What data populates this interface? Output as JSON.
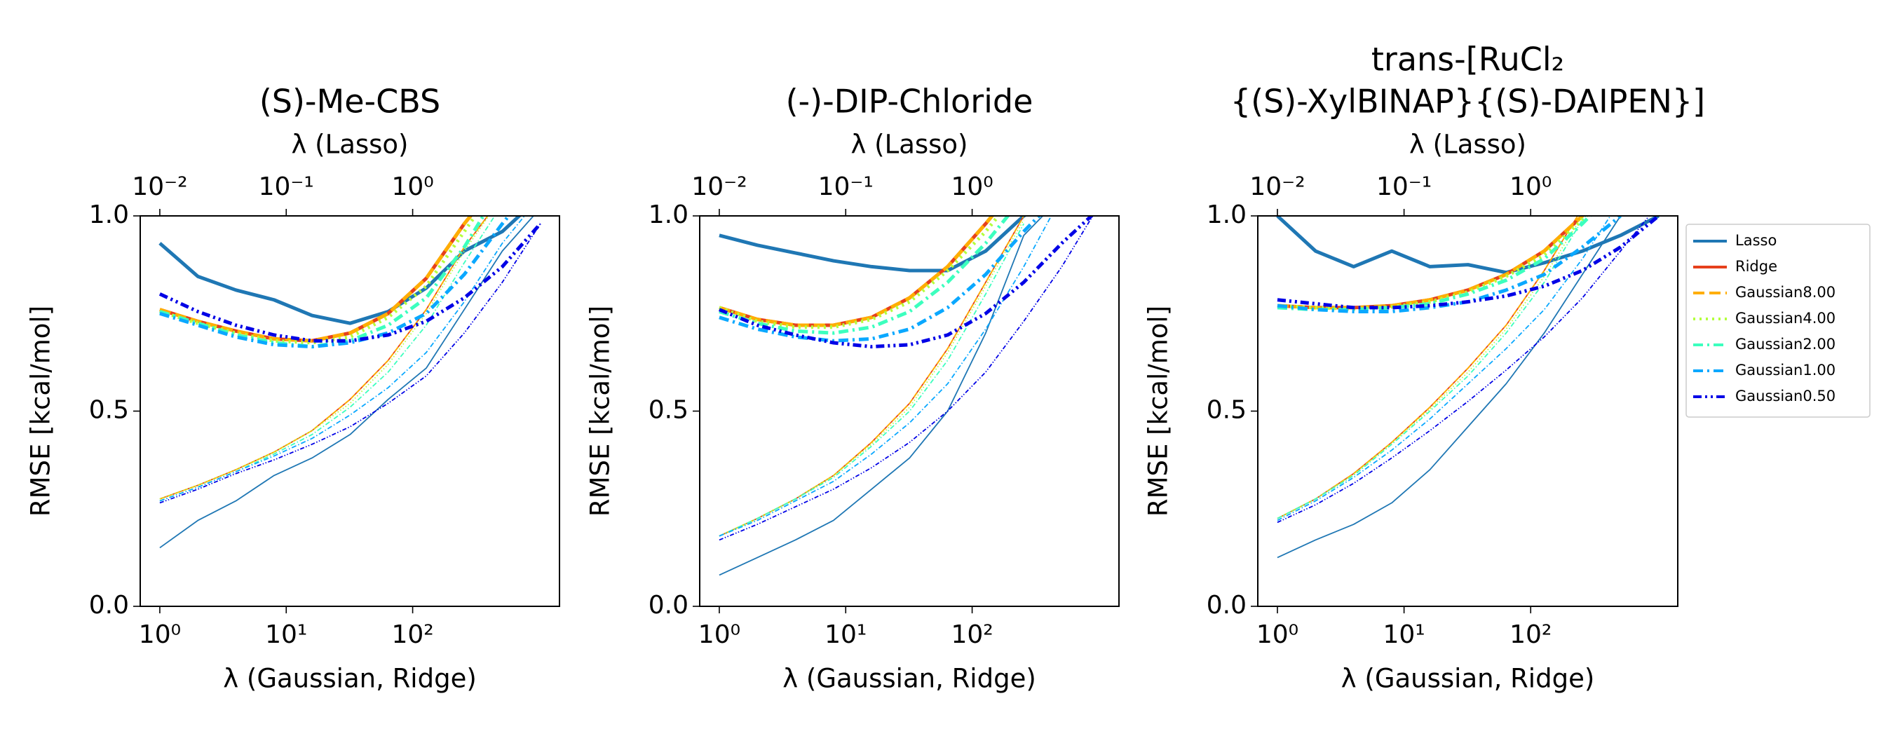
{
  "chart_data": [
    {
      "type": "line",
      "title": [
        "(S)-Me-CBS"
      ],
      "xlabel": "λ (Gaussian, Ridge)",
      "x2label": "λ (Lasso)",
      "ylabel": "RMSE [kcal/mol]",
      "xscale": "log",
      "xlim": [
        0.7,
        1450
      ],
      "xticks": [
        {
          "value": 1,
          "label": "10⁰"
        },
        {
          "value": 10,
          "label": "10¹"
        },
        {
          "value": 100,
          "label": "10²"
        }
      ],
      "x2lim": [
        0.007,
        14.5
      ],
      "x2ticks": [
        {
          "value": 0.01,
          "label": "10⁻²"
        },
        {
          "value": 0.1,
          "label": "10⁻¹"
        },
        {
          "value": 1,
          "label": "10⁰"
        }
      ],
      "ylim": [
        0,
        1
      ],
      "yticks": [
        {
          "value": 0,
          "label": "0.0"
        },
        {
          "value": 0.5,
          "label": "0.5"
        },
        {
          "value": 1,
          "label": "1.0"
        }
      ],
      "series": [
        {
          "color": "#1f77b4",
          "dash": "solid",
          "axis": "x2",
          "x": [
            0.01,
            0.02,
            0.04,
            0.08,
            0.16,
            0.32,
            0.64,
            1.28,
            2.56,
            5.12,
            10.24
          ],
          "values": [
            0.93,
            0.845,
            0.81,
            0.785,
            0.745,
            0.725,
            0.755,
            0.815,
            0.91,
            0.96,
            1.05
          ],
          "train_values": [
            0.15,
            0.22,
            0.27,
            0.335,
            0.38,
            0.44,
            0.53,
            0.61,
            0.76,
            0.91,
            1.02
          ]
        },
        {
          "color": "#e6401c",
          "dash": "solid",
          "x": [
            1,
            2,
            4,
            8,
            16,
            32,
            64,
            128,
            256,
            512
          ],
          "values": [
            0.76,
            0.73,
            0.705,
            0.685,
            0.68,
            0.7,
            0.75,
            0.84,
            0.98,
            1.1
          ],
          "train_values": [
            0.275,
            0.31,
            0.35,
            0.395,
            0.45,
            0.53,
            0.63,
            0.76,
            0.92,
            1.05
          ]
        },
        {
          "color": "#ffae00",
          "dash": "dashed",
          "x": [
            1,
            2,
            4,
            8,
            16,
            32,
            64,
            128,
            256,
            512
          ],
          "values": [
            0.76,
            0.73,
            0.705,
            0.685,
            0.68,
            0.7,
            0.75,
            0.84,
            0.98,
            1.1
          ],
          "train_values": [
            0.275,
            0.31,
            0.35,
            0.395,
            0.45,
            0.53,
            0.63,
            0.76,
            0.92,
            1.05
          ]
        },
        {
          "color": "#b4ff3c",
          "dash": "dotted",
          "x": [
            1,
            2,
            4,
            8,
            16,
            32,
            64,
            128,
            256,
            512
          ],
          "values": [
            0.755,
            0.725,
            0.7,
            0.68,
            0.675,
            0.69,
            0.74,
            0.82,
            0.96,
            1.1
          ],
          "train_values": [
            0.275,
            0.31,
            0.35,
            0.395,
            0.45,
            0.52,
            0.62,
            0.75,
            0.91,
            1.05
          ]
        },
        {
          "color": "#3cffbe",
          "dash": "dashdot",
          "x": [
            1,
            2,
            4,
            8,
            16,
            32,
            64,
            128,
            256,
            512
          ],
          "values": [
            0.755,
            0.725,
            0.695,
            0.675,
            0.665,
            0.68,
            0.72,
            0.79,
            0.92,
            1.08
          ],
          "train_values": [
            0.27,
            0.305,
            0.345,
            0.39,
            0.44,
            0.51,
            0.6,
            0.72,
            0.88,
            1.03
          ]
        },
        {
          "color": "#0aa8ff",
          "dash": "dashdot",
          "x": [
            1,
            2,
            4,
            8,
            16,
            32,
            64,
            128,
            256,
            512,
            1024
          ],
          "values": [
            0.75,
            0.72,
            0.69,
            0.67,
            0.665,
            0.675,
            0.7,
            0.75,
            0.85,
            0.98,
            1.1
          ],
          "train_values": [
            0.27,
            0.305,
            0.345,
            0.385,
            0.43,
            0.49,
            0.56,
            0.65,
            0.78,
            0.93,
            1.05
          ]
        },
        {
          "color": "#0000e6",
          "dash": "dashdotdot",
          "x": [
            1,
            2,
            4,
            8,
            16,
            32,
            64,
            128,
            256,
            512,
            1024
          ],
          "values": [
            0.8,
            0.755,
            0.72,
            0.695,
            0.68,
            0.68,
            0.695,
            0.73,
            0.79,
            0.87,
            0.98
          ],
          "train_values": [
            0.265,
            0.3,
            0.34,
            0.375,
            0.415,
            0.46,
            0.52,
            0.59,
            0.7,
            0.83,
            0.98
          ]
        }
      ]
    },
    {
      "type": "line",
      "title": [
        "(-)-DIP-Chloride"
      ],
      "xlabel": "λ (Gaussian, Ridge)",
      "x2label": "λ (Lasso)",
      "ylabel": "RMSE [kcal/mol]",
      "xscale": "log",
      "xlim": [
        0.7,
        1450
      ],
      "xticks": [
        {
          "value": 1,
          "label": "10⁰"
        },
        {
          "value": 10,
          "label": "10¹"
        },
        {
          "value": 100,
          "label": "10²"
        }
      ],
      "x2lim": [
        0.007,
        14.5
      ],
      "x2ticks": [
        {
          "value": 0.01,
          "label": "10⁻²"
        },
        {
          "value": 0.1,
          "label": "10⁻¹"
        },
        {
          "value": 1,
          "label": "10⁰"
        }
      ],
      "ylim": [
        0,
        1
      ],
      "yticks": [
        {
          "value": 0,
          "label": "0.0"
        },
        {
          "value": 0.5,
          "label": "0.5"
        },
        {
          "value": 1,
          "label": "1.0"
        }
      ],
      "series": [
        {
          "color": "#1f77b4",
          "dash": "solid",
          "axis": "x2",
          "x": [
            0.01,
            0.02,
            0.04,
            0.08,
            0.16,
            0.32,
            0.64,
            1.28,
            2.56,
            5.12
          ],
          "values": [
            0.95,
            0.925,
            0.905,
            0.885,
            0.87,
            0.86,
            0.86,
            0.91,
            1.0,
            1.05
          ],
          "train_values": [
            0.08,
            0.125,
            0.17,
            0.22,
            0.3,
            0.38,
            0.5,
            0.7,
            0.95,
            1.05
          ]
        },
        {
          "color": "#e6401c",
          "dash": "solid",
          "x": [
            1,
            2,
            4,
            8,
            16,
            32,
            64,
            128,
            256
          ],
          "values": [
            0.765,
            0.735,
            0.72,
            0.72,
            0.74,
            0.79,
            0.87,
            0.98,
            1.1
          ],
          "train_values": [
            0.18,
            0.225,
            0.275,
            0.335,
            0.42,
            0.52,
            0.66,
            0.83,
            1.0
          ]
        },
        {
          "color": "#ffae00",
          "dash": "dashed",
          "x": [
            1,
            2,
            4,
            8,
            16,
            32,
            64,
            128,
            256
          ],
          "values": [
            0.765,
            0.735,
            0.72,
            0.72,
            0.74,
            0.79,
            0.87,
            0.98,
            1.1
          ],
          "train_values": [
            0.18,
            0.225,
            0.275,
            0.335,
            0.42,
            0.52,
            0.66,
            0.83,
            1.0
          ]
        },
        {
          "color": "#b4ff3c",
          "dash": "dotted",
          "x": [
            1,
            2,
            4,
            8,
            16,
            32,
            64,
            128,
            256
          ],
          "values": [
            0.765,
            0.73,
            0.715,
            0.715,
            0.735,
            0.78,
            0.86,
            0.96,
            1.08
          ],
          "train_values": [
            0.18,
            0.225,
            0.275,
            0.335,
            0.415,
            0.51,
            0.65,
            0.82,
            0.99
          ]
        },
        {
          "color": "#3cffbe",
          "dash": "dashdot",
          "x": [
            1,
            2,
            4,
            8,
            16,
            32,
            64,
            128,
            256
          ],
          "values": [
            0.755,
            0.725,
            0.705,
            0.7,
            0.715,
            0.755,
            0.83,
            0.93,
            1.05
          ],
          "train_values": [
            0.18,
            0.225,
            0.275,
            0.33,
            0.41,
            0.5,
            0.63,
            0.8,
            0.98
          ]
        },
        {
          "color": "#0aa8ff",
          "dash": "dashdot",
          "x": [
            1,
            2,
            4,
            8,
            16,
            32,
            64,
            128,
            256,
            512
          ],
          "values": [
            0.74,
            0.71,
            0.69,
            0.68,
            0.685,
            0.71,
            0.765,
            0.85,
            0.96,
            1.06
          ],
          "train_values": [
            0.18,
            0.22,
            0.27,
            0.32,
            0.39,
            0.47,
            0.57,
            0.71,
            0.87,
            1.05
          ]
        },
        {
          "color": "#0000e6",
          "dash": "dashdotdot",
          "x": [
            1,
            2,
            4,
            8,
            16,
            32,
            64,
            128,
            256,
            512,
            1024
          ],
          "values": [
            0.76,
            0.72,
            0.695,
            0.675,
            0.665,
            0.67,
            0.695,
            0.75,
            0.83,
            0.93,
            1.02
          ],
          "train_values": [
            0.17,
            0.21,
            0.255,
            0.3,
            0.355,
            0.42,
            0.5,
            0.6,
            0.73,
            0.87,
            1.03
          ]
        }
      ]
    },
    {
      "type": "line",
      "title": [
        "trans-[RuCl₂",
        "{(S)-XylBINAP}{(S)-DAIPEN}]"
      ],
      "xlabel": "λ (Gaussian, Ridge)",
      "x2label": "λ (Lasso)",
      "ylabel": "RMSE [kcal/mol]",
      "xscale": "log",
      "xlim": [
        0.7,
        1450
      ],
      "xticks": [
        {
          "value": 1,
          "label": "10⁰"
        },
        {
          "value": 10,
          "label": "10¹"
        },
        {
          "value": 100,
          "label": "10²"
        }
      ],
      "x2lim": [
        0.007,
        14.5
      ],
      "x2ticks": [
        {
          "value": 0.01,
          "label": "10⁻²"
        },
        {
          "value": 0.1,
          "label": "10⁻¹"
        },
        {
          "value": 1,
          "label": "10⁰"
        }
      ],
      "ylim": [
        0,
        1
      ],
      "yticks": [
        {
          "value": 0,
          "label": "0.0"
        },
        {
          "value": 0.5,
          "label": "0.5"
        },
        {
          "value": 1,
          "label": "1.0"
        }
      ],
      "legend": "outside right",
      "series": [
        {
          "name": "Lasso",
          "color": "#1f77b4",
          "dash": "solid",
          "axis": "x2",
          "x": [
            0.01,
            0.02,
            0.04,
            0.08,
            0.16,
            0.32,
            0.64,
            1.28,
            2.56,
            5.12,
            10.24
          ],
          "values": [
            1.0,
            0.91,
            0.87,
            0.91,
            0.87,
            0.875,
            0.855,
            0.88,
            0.91,
            0.95,
            1.0
          ],
          "train_values": [
            0.125,
            0.17,
            0.21,
            0.265,
            0.35,
            0.46,
            0.57,
            0.7,
            0.85,
            1.0,
            1.05
          ]
        },
        {
          "name": "Ridge",
          "color": "#e6401c",
          "dash": "solid",
          "x": [
            1,
            2,
            4,
            8,
            16,
            32,
            64,
            128,
            256,
            512
          ],
          "values": [
            0.77,
            0.765,
            0.765,
            0.77,
            0.785,
            0.81,
            0.85,
            0.91,
            1.0,
            1.1
          ],
          "train_values": [
            0.225,
            0.275,
            0.34,
            0.42,
            0.51,
            0.61,
            0.72,
            0.86,
            1.02,
            1.15
          ]
        },
        {
          "name": "Gaussian8.00",
          "color": "#ffae00",
          "dash": "dashed",
          "x": [
            1,
            2,
            4,
            8,
            16,
            32,
            64,
            128,
            256,
            512
          ],
          "values": [
            0.77,
            0.765,
            0.765,
            0.77,
            0.785,
            0.81,
            0.85,
            0.91,
            1.0,
            1.1
          ],
          "train_values": [
            0.225,
            0.275,
            0.34,
            0.42,
            0.51,
            0.61,
            0.72,
            0.86,
            1.02,
            1.15
          ]
        },
        {
          "name": "Gaussian4.00",
          "color": "#b4ff3c",
          "dash": "dotted",
          "x": [
            1,
            2,
            4,
            8,
            16,
            32,
            64,
            128,
            256,
            512
          ],
          "values": [
            0.77,
            0.765,
            0.762,
            0.767,
            0.78,
            0.805,
            0.845,
            0.9,
            0.99,
            1.09
          ],
          "train_values": [
            0.225,
            0.275,
            0.338,
            0.418,
            0.505,
            0.6,
            0.71,
            0.845,
            1.0,
            1.12
          ]
        },
        {
          "name": "Gaussian2.00",
          "color": "#3cffbe",
          "dash": "dashdot",
          "x": [
            1,
            2,
            4,
            8,
            16,
            32,
            64,
            128,
            256,
            512
          ],
          "values": [
            0.765,
            0.76,
            0.76,
            0.765,
            0.775,
            0.8,
            0.835,
            0.89,
            0.98,
            1.08
          ],
          "train_values": [
            0.225,
            0.275,
            0.335,
            0.415,
            0.5,
            0.59,
            0.7,
            0.83,
            0.99,
            1.1
          ]
        },
        {
          "name": "Gaussian1.00",
          "color": "#0aa8ff",
          "dash": "dashdot",
          "x": [
            1,
            2,
            4,
            8,
            16,
            32,
            64,
            128,
            256,
            512
          ],
          "values": [
            0.77,
            0.76,
            0.755,
            0.755,
            0.765,
            0.78,
            0.81,
            0.85,
            0.92,
            1.0
          ],
          "train_values": [
            0.22,
            0.27,
            0.33,
            0.4,
            0.48,
            0.57,
            0.66,
            0.76,
            0.89,
            1.04
          ]
        },
        {
          "name": "Gaussian0.50",
          "color": "#0000e6",
          "dash": "dashdotdot",
          "x": [
            1,
            2,
            4,
            8,
            16,
            32,
            64,
            128,
            256,
            512,
            1024
          ],
          "values": [
            0.785,
            0.775,
            0.765,
            0.765,
            0.77,
            0.78,
            0.795,
            0.82,
            0.86,
            0.92,
            1.0
          ],
          "train_values": [
            0.215,
            0.26,
            0.315,
            0.38,
            0.45,
            0.525,
            0.605,
            0.69,
            0.79,
            0.91,
            1.03
          ]
        }
      ]
    }
  ]
}
